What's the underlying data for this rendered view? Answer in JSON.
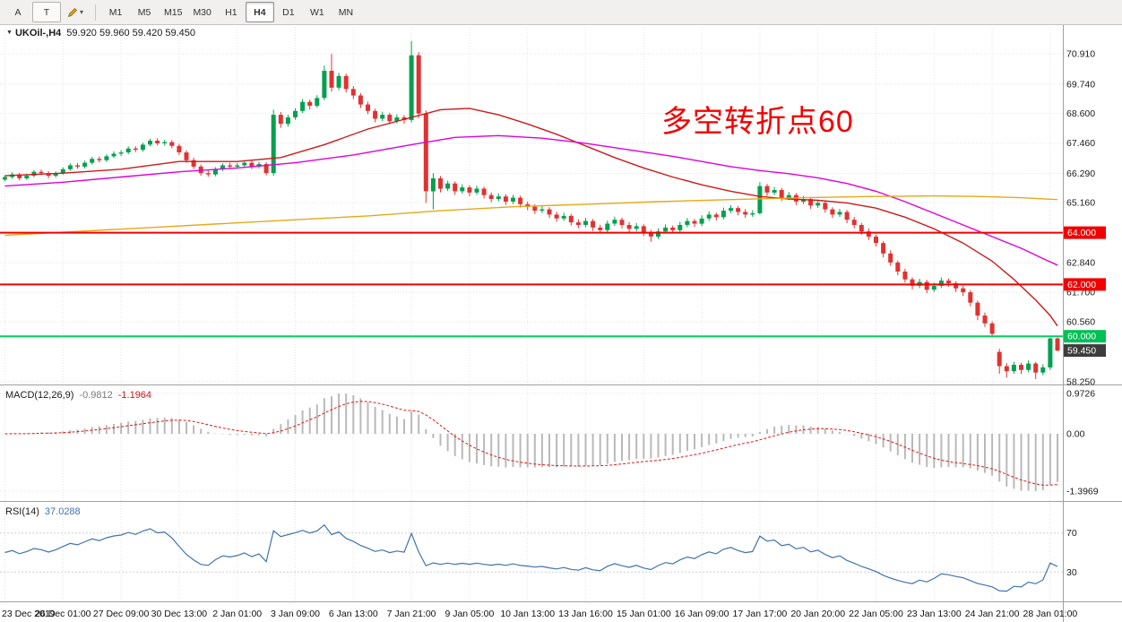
{
  "toolbar": {
    "tools": [
      "A",
      "T"
    ],
    "timeframes": [
      "M1",
      "M5",
      "M15",
      "M30",
      "H1",
      "H4",
      "D1",
      "W1",
      "MN"
    ],
    "active_timeframe": "H4"
  },
  "icons": {
    "symbol_marker": "▼",
    "dropdown_caret": "▾"
  },
  "chart_header": {
    "symbol": "UKOil-,H4",
    "quote": "59.920 59.960 59.420 59.450"
  },
  "annotation": {
    "text": "多空转折点60",
    "color": "#f20000"
  },
  "macd_panel": {
    "label": "MACD(12,26,9)",
    "value_main": "-0.9812",
    "value_signal": "-1.1964",
    "params": [
      12,
      26,
      9
    ],
    "axis": [
      {
        "text": "0.9726",
        "v": 0.9726
      },
      {
        "text": "0.00",
        "v": 0
      },
      {
        "text": "-1.3969",
        "v": -1.3969
      }
    ],
    "histogram_color": "#b9b9b9",
    "signal_color": "#e01616"
  },
  "rsi_panel": {
    "label": "RSI(14)",
    "value": "37.0288",
    "period": 14,
    "levels": [
      70,
      30
    ],
    "color": "#4173ad"
  },
  "chart_data": {
    "type": "candlestick",
    "symbol": "UKOil",
    "timeframe": "H4",
    "bull_color": "#00a14e",
    "bear_color": "#e03232",
    "y_tick_labels": [
      "70.910",
      "69.740",
      "68.600",
      "67.460",
      "66.290",
      "65.160",
      "62.840",
      "61.700",
      "60.560",
      "58.250"
    ],
    "x_tick_labels": [
      "23 Dec 2019",
      "26 Dec 01:00",
      "27 Dec 09:00",
      "30 Dec 13:00",
      "2 Jan 01:00",
      "3 Jan 09:00",
      "6 Jan 13:00",
      "7 Jan 21:00",
      "9 Jan 05:00",
      "10 Jan 13:00",
      "13 Jan 16:00",
      "15 Jan 01:00",
      "16 Jan 09:00",
      "17 Jan 17:00",
      "20 Jan 20:00",
      "22 Jan 05:00",
      "23 Jan 13:00",
      "24 Jan 21:00",
      "28 Jan 01:00"
    ],
    "bars_per_x_tick": 8,
    "levels": [
      {
        "value": 64.0,
        "label": "64.000",
        "color": "#f20000"
      },
      {
        "value": 62.0,
        "label": "62.000",
        "color": "#f20000"
      },
      {
        "value": 60.0,
        "label": "60.000",
        "color": "#00cf5d"
      }
    ],
    "price_badges": [
      {
        "label": "64.000",
        "value": 64.0,
        "color": "#f20000"
      },
      {
        "label": "62.000",
        "value": 62.0,
        "color": "#f20000"
      },
      {
        "label": "60.000",
        "value": 60.0,
        "color": "#00bf55"
      },
      {
        "label": "59.450",
        "value": 59.45,
        "color": "#3c3c3c"
      }
    ],
    "moving_averages": [
      {
        "name": "ma-fast-red",
        "color": "#cc1a1a",
        "points": [
          [
            0,
            66.2
          ],
          [
            8,
            66.3
          ],
          [
            16,
            66.45
          ],
          [
            24,
            66.75
          ],
          [
            32,
            66.75
          ],
          [
            38,
            66.9
          ],
          [
            44,
            67.4
          ],
          [
            50,
            68.0
          ],
          [
            56,
            68.45
          ],
          [
            60,
            68.75
          ],
          [
            64,
            68.8
          ],
          [
            68,
            68.55
          ],
          [
            72,
            68.2
          ],
          [
            76,
            67.8
          ],
          [
            80,
            67.35
          ],
          [
            84,
            66.9
          ],
          [
            88,
            66.5
          ],
          [
            92,
            66.15
          ],
          [
            96,
            65.85
          ],
          [
            100,
            65.6
          ],
          [
            104,
            65.4
          ],
          [
            108,
            65.3
          ],
          [
            112,
            65.25
          ],
          [
            116,
            65.15
          ],
          [
            120,
            64.95
          ],
          [
            124,
            64.6
          ],
          [
            128,
            64.15
          ],
          [
            132,
            63.6
          ],
          [
            136,
            62.9
          ],
          [
            139,
            62.2
          ],
          [
            142,
            61.4
          ],
          [
            144,
            60.8
          ],
          [
            145,
            60.4
          ]
        ]
      },
      {
        "name": "ma-mid-magenta",
        "color": "#dd00dd",
        "points": [
          [
            0,
            65.8
          ],
          [
            8,
            65.95
          ],
          [
            16,
            66.15
          ],
          [
            24,
            66.35
          ],
          [
            32,
            66.5
          ],
          [
            40,
            66.7
          ],
          [
            48,
            67.0
          ],
          [
            56,
            67.4
          ],
          [
            62,
            67.68
          ],
          [
            68,
            67.75
          ],
          [
            74,
            67.65
          ],
          [
            80,
            67.45
          ],
          [
            86,
            67.2
          ],
          [
            92,
            66.95
          ],
          [
            96,
            66.75
          ],
          [
            100,
            66.55
          ],
          [
            104,
            66.4
          ],
          [
            108,
            66.28
          ],
          [
            112,
            66.12
          ],
          [
            116,
            65.9
          ],
          [
            120,
            65.6
          ],
          [
            124,
            65.2
          ],
          [
            128,
            64.75
          ],
          [
            132,
            64.3
          ],
          [
            136,
            63.85
          ],
          [
            140,
            63.4
          ],
          [
            143,
            63.0
          ],
          [
            145,
            62.75
          ]
        ]
      },
      {
        "name": "ma-slow-orange",
        "color": "#e6a817",
        "points": [
          [
            0,
            63.9
          ],
          [
            10,
            64.05
          ],
          [
            20,
            64.2
          ],
          [
            30,
            64.35
          ],
          [
            40,
            64.5
          ],
          [
            50,
            64.65
          ],
          [
            60,
            64.85
          ],
          [
            70,
            65.0
          ],
          [
            80,
            65.1
          ],
          [
            90,
            65.2
          ],
          [
            100,
            65.28
          ],
          [
            110,
            65.35
          ],
          [
            120,
            65.4
          ],
          [
            128,
            65.42
          ],
          [
            134,
            65.4
          ],
          [
            140,
            65.35
          ],
          [
            145,
            65.28
          ]
        ]
      }
    ],
    "candles": [
      [
        66.05,
        66.22,
        65.98,
        66.15
      ],
      [
        66.15,
        66.33,
        66.08,
        66.25
      ],
      [
        66.25,
        66.31,
        66.02,
        66.1
      ],
      [
        66.1,
        66.28,
        66.04,
        66.2
      ],
      [
        66.2,
        66.42,
        66.14,
        66.35
      ],
      [
        66.35,
        66.44,
        66.22,
        66.3
      ],
      [
        66.3,
        66.38,
        66.11,
        66.2
      ],
      [
        66.2,
        66.37,
        66.13,
        66.3
      ],
      [
        66.3,
        66.52,
        66.24,
        66.45
      ],
      [
        66.45,
        66.68,
        66.39,
        66.6
      ],
      [
        66.6,
        66.69,
        66.47,
        66.55
      ],
      [
        66.55,
        66.78,
        66.48,
        66.7
      ],
      [
        66.7,
        66.93,
        66.63,
        66.85
      ],
      [
        66.85,
        66.94,
        66.71,
        66.8
      ],
      [
        66.8,
        67.03,
        66.73,
        66.95
      ],
      [
        66.95,
        67.14,
        66.88,
        67.05
      ],
      [
        67.05,
        67.19,
        66.96,
        67.1
      ],
      [
        67.1,
        67.33,
        67.03,
        67.25
      ],
      [
        67.25,
        67.34,
        67.11,
        67.2
      ],
      [
        67.2,
        67.48,
        67.13,
        67.4
      ],
      [
        67.4,
        67.63,
        67.33,
        67.55
      ],
      [
        67.55,
        67.64,
        67.37,
        67.45
      ],
      [
        67.45,
        67.59,
        67.36,
        67.5
      ],
      [
        67.5,
        67.58,
        67.26,
        67.35
      ],
      [
        67.35,
        67.43,
        67.0,
        67.1
      ],
      [
        67.1,
        67.18,
        66.7,
        66.8
      ],
      [
        66.8,
        66.89,
        66.46,
        66.55
      ],
      [
        66.55,
        66.63,
        66.2,
        66.3
      ],
      [
        66.3,
        66.42,
        66.16,
        66.25
      ],
      [
        66.25,
        66.53,
        66.18,
        66.45
      ],
      [
        66.45,
        66.68,
        66.38,
        66.6
      ],
      [
        66.6,
        66.7,
        66.46,
        66.55
      ],
      [
        66.55,
        66.69,
        66.47,
        66.6
      ],
      [
        66.6,
        66.79,
        66.52,
        66.7
      ],
      [
        66.7,
        66.78,
        66.45,
        66.55
      ],
      [
        66.55,
        66.74,
        66.48,
        66.65
      ],
      [
        66.65,
        66.72,
        66.21,
        66.3
      ],
      [
        66.3,
        68.75,
        66.2,
        68.55
      ],
      [
        68.55,
        68.66,
        68.05,
        68.2
      ],
      [
        68.2,
        68.55,
        68.1,
        68.45
      ],
      [
        68.45,
        68.8,
        68.36,
        68.7
      ],
      [
        68.7,
        69.16,
        68.62,
        69.05
      ],
      [
        69.05,
        69.14,
        68.76,
        68.9
      ],
      [
        68.9,
        69.31,
        68.82,
        69.2
      ],
      [
        69.2,
        70.45,
        69.12,
        70.25
      ],
      [
        70.25,
        70.9,
        69.45,
        69.6
      ],
      [
        69.6,
        70.17,
        69.5,
        70.05
      ],
      [
        70.05,
        70.14,
        69.41,
        69.55
      ],
      [
        69.55,
        69.66,
        69.16,
        69.3
      ],
      [
        69.3,
        69.39,
        68.81,
        68.95
      ],
      [
        68.95,
        69.06,
        68.58,
        68.7
      ],
      [
        68.7,
        68.79,
        68.26,
        68.4
      ],
      [
        68.4,
        68.67,
        68.31,
        68.55
      ],
      [
        68.55,
        68.63,
        68.18,
        68.3
      ],
      [
        68.3,
        68.57,
        68.22,
        68.45
      ],
      [
        68.45,
        68.54,
        68.21,
        68.35
      ],
      [
        68.35,
        71.4,
        68.25,
        70.85
      ],
      [
        70.85,
        70.97,
        68.42,
        68.6
      ],
      [
        68.6,
        68.72,
        65.15,
        65.6
      ],
      [
        65.6,
        66.3,
        64.9,
        66.1
      ],
      [
        66.1,
        66.19,
        65.56,
        65.7
      ],
      [
        65.7,
        66.01,
        65.61,
        65.9
      ],
      [
        65.9,
        65.98,
        65.46,
        65.6
      ],
      [
        65.6,
        65.87,
        65.51,
        65.75
      ],
      [
        65.75,
        65.84,
        65.41,
        65.55
      ],
      [
        65.55,
        65.81,
        65.46,
        65.7
      ],
      [
        65.7,
        65.78,
        65.32,
        65.45
      ],
      [
        65.45,
        65.56,
        65.17,
        65.3
      ],
      [
        65.3,
        65.52,
        65.21,
        65.4
      ],
      [
        65.4,
        65.49,
        65.07,
        65.2
      ],
      [
        65.2,
        65.46,
        65.11,
        65.35
      ],
      [
        65.35,
        65.43,
        64.97,
        65.1
      ],
      [
        65.1,
        65.21,
        64.87,
        65.0
      ],
      [
        65.0,
        65.09,
        64.72,
        64.85
      ],
      [
        64.85,
        65.02,
        64.76,
        64.9
      ],
      [
        64.9,
        64.98,
        64.57,
        64.7
      ],
      [
        64.7,
        64.81,
        64.42,
        64.55
      ],
      [
        64.55,
        64.77,
        64.46,
        64.65
      ],
      [
        64.65,
        64.73,
        64.27,
        64.4
      ],
      [
        64.4,
        64.52,
        64.17,
        64.3
      ],
      [
        64.3,
        64.57,
        64.21,
        64.45
      ],
      [
        64.45,
        64.53,
        64.07,
        64.2
      ],
      [
        64.2,
        64.31,
        63.97,
        64.1
      ],
      [
        64.1,
        64.47,
        64.01,
        64.35
      ],
      [
        64.35,
        64.62,
        64.26,
        64.5
      ],
      [
        64.5,
        64.58,
        64.17,
        64.3
      ],
      [
        64.3,
        64.41,
        64.02,
        64.15
      ],
      [
        64.15,
        64.37,
        64.06,
        64.25
      ],
      [
        64.25,
        64.33,
        63.87,
        64.0
      ],
      [
        64.0,
        64.11,
        63.65,
        63.85
      ],
      [
        63.85,
        64.17,
        63.76,
        64.05
      ],
      [
        64.05,
        64.32,
        63.96,
        64.2
      ],
      [
        64.2,
        64.28,
        63.97,
        64.1
      ],
      [
        64.1,
        64.42,
        64.01,
        64.3
      ],
      [
        64.3,
        64.57,
        64.21,
        64.45
      ],
      [
        64.45,
        64.53,
        64.22,
        64.35
      ],
      [
        64.35,
        64.67,
        64.26,
        64.55
      ],
      [
        64.55,
        64.82,
        64.46,
        64.7
      ],
      [
        64.7,
        64.78,
        64.47,
        64.6
      ],
      [
        64.6,
        64.97,
        64.51,
        64.85
      ],
      [
        64.85,
        65.07,
        64.76,
        64.95
      ],
      [
        64.95,
        65.03,
        64.67,
        64.8
      ],
      [
        64.8,
        64.91,
        64.57,
        64.7
      ],
      [
        64.7,
        64.87,
        64.61,
        64.75
      ],
      [
        64.75,
        65.95,
        64.7,
        65.8
      ],
      [
        65.8,
        65.88,
        65.42,
        65.55
      ],
      [
        65.55,
        65.77,
        65.46,
        65.65
      ],
      [
        65.65,
        65.73,
        65.22,
        65.35
      ],
      [
        65.35,
        65.57,
        65.26,
        65.45
      ],
      [
        65.45,
        65.53,
        65.07,
        65.2
      ],
      [
        65.2,
        65.42,
        65.11,
        65.3
      ],
      [
        65.3,
        65.38,
        64.92,
        65.05
      ],
      [
        65.05,
        65.27,
        64.96,
        65.15
      ],
      [
        65.15,
        65.23,
        64.77,
        64.9
      ],
      [
        64.9,
        64.98,
        64.57,
        64.7
      ],
      [
        64.7,
        64.92,
        64.61,
        64.8
      ],
      [
        64.8,
        64.88,
        64.37,
        64.5
      ],
      [
        64.5,
        64.61,
        64.17,
        64.3
      ],
      [
        64.3,
        64.38,
        63.92,
        64.05
      ],
      [
        64.05,
        64.17,
        63.72,
        63.85
      ],
      [
        63.85,
        63.93,
        63.47,
        63.6
      ],
      [
        63.6,
        63.68,
        63.05,
        63.2
      ],
      [
        63.2,
        63.32,
        62.72,
        62.85
      ],
      [
        62.85,
        62.93,
        62.36,
        62.5
      ],
      [
        62.5,
        62.61,
        62.07,
        62.2
      ],
      [
        62.2,
        62.28,
        61.81,
        61.95
      ],
      [
        61.95,
        62.22,
        61.86,
        62.1
      ],
      [
        62.1,
        62.18,
        61.66,
        61.8
      ],
      [
        61.8,
        62.07,
        61.71,
        61.95
      ],
      [
        61.95,
        62.27,
        61.86,
        62.15
      ],
      [
        62.15,
        62.23,
        61.92,
        62.05
      ],
      [
        62.05,
        62.13,
        61.71,
        61.85
      ],
      [
        61.85,
        61.96,
        61.56,
        61.7
      ],
      [
        61.7,
        61.78,
        61.16,
        61.3
      ],
      [
        61.3,
        61.38,
        60.62,
        60.8
      ],
      [
        60.8,
        60.92,
        60.36,
        60.5
      ],
      [
        60.5,
        60.58,
        59.95,
        60.1
      ],
      [
        59.4,
        59.52,
        58.55,
        58.85
      ],
      [
        58.85,
        58.96,
        58.4,
        58.65
      ],
      [
        58.65,
        59.02,
        58.56,
        58.9
      ],
      [
        58.9,
        58.98,
        58.55,
        58.7
      ],
      [
        58.7,
        59.07,
        58.61,
        58.95
      ],
      [
        58.95,
        59.02,
        58.35,
        58.6
      ],
      [
        58.6,
        58.92,
        58.5,
        58.8
      ],
      [
        58.8,
        59.95,
        58.7,
        59.92
      ],
      [
        59.92,
        59.96,
        59.42,
        59.45
      ]
    ]
  }
}
